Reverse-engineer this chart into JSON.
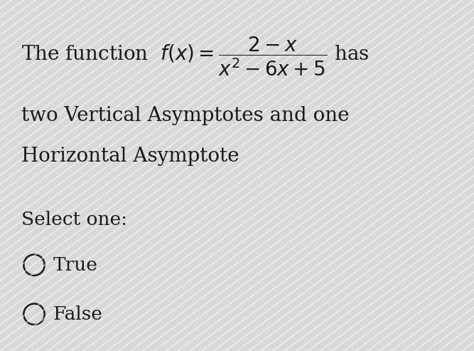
{
  "background_color": "#d8d8d8",
  "stripe_color_light": "#e2e2e2",
  "stripe_color_white": "#e8e8e8",
  "text_color": "#1a1a1a",
  "line2": "two Vertical Asymptotes and one",
  "line3": "Horizontal Asymptote",
  "select_label": "Select one:",
  "option1": "True",
  "option2": "False",
  "font_size_main": 20,
  "font_size_formula": 14,
  "font_size_select": 19,
  "font_size_option": 19,
  "fig_width": 6.67,
  "fig_height": 4.93,
  "dpi": 100
}
